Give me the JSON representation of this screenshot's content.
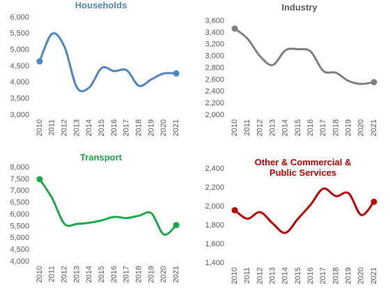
{
  "chart_data": [
    {
      "type": "line",
      "title": "Households",
      "title_color": "#4a86c8",
      "color": "#4a86c8",
      "categories": [
        "2010",
        "2011",
        "2012",
        "2013",
        "2014",
        "2015",
        "2016",
        "2017",
        "2018",
        "2019",
        "2020",
        "2021"
      ],
      "values": [
        4650,
        5500,
        5100,
        3850,
        3850,
        4450,
        4350,
        4380,
        3900,
        4100,
        4280,
        4280
      ],
      "ylim": [
        3000,
        6000
      ],
      "yticks": [
        {
          "value": 3000,
          "label": "3,000"
        },
        {
          "value": 3500,
          "label": "3,500"
        },
        {
          "value": 4000,
          "label": "4,000"
        },
        {
          "value": 4500,
          "label": "4,500"
        },
        {
          "value": 5000,
          "label": "5,000"
        },
        {
          "value": 5500,
          "label": "5,500"
        },
        {
          "value": 6000,
          "label": "6,000"
        }
      ]
    },
    {
      "type": "line",
      "title": "Industry",
      "title_color": "#595959",
      "color": "#7f7f7f",
      "categories": [
        "2010",
        "2011",
        "2012",
        "2013",
        "2014",
        "2015",
        "2016",
        "2017",
        "2018",
        "2019",
        "2020",
        "2021"
      ],
      "values": [
        3470,
        3300,
        3000,
        2850,
        3100,
        3120,
        3080,
        2750,
        2720,
        2580,
        2530,
        2560
      ],
      "ylim": [
        2000,
        3600
      ],
      "yticks": [
        {
          "value": 2000,
          "label": "2,000"
        },
        {
          "value": 2200,
          "label": "2,200"
        },
        {
          "value": 2400,
          "label": "2,400"
        },
        {
          "value": 2600,
          "label": "2,600"
        },
        {
          "value": 2800,
          "label": "2,800"
        },
        {
          "value": 3000,
          "label": "3,000"
        },
        {
          "value": 3200,
          "label": "3,200"
        },
        {
          "value": 3400,
          "label": "3,400"
        },
        {
          "value": 3600,
          "label": "3,600"
        }
      ]
    },
    {
      "type": "line",
      "title": "Transport",
      "title_color": "#1aaa4a",
      "color": "#1aaa4a",
      "categories": [
        "2010",
        "2011",
        "2012",
        "2013",
        "2014",
        "2015",
        "2016",
        "2017",
        "2018",
        "2019",
        "2020",
        "2021"
      ],
      "values": [
        7500,
        6700,
        5600,
        5600,
        5650,
        5750,
        5900,
        5850,
        5950,
        6050,
        5150,
        5550
      ],
      "ylim": [
        4000,
        8000
      ],
      "yticks": [
        {
          "value": 4000,
          "label": "4,000"
        },
        {
          "value": 4500,
          "label": "4,500"
        },
        {
          "value": 5000,
          "label": "5,000"
        },
        {
          "value": 5500,
          "label": "5,500"
        },
        {
          "value": 6000,
          "label": "6,000"
        },
        {
          "value": 6500,
          "label": "6,500"
        },
        {
          "value": 7000,
          "label": "7,000"
        },
        {
          "value": 7500,
          "label": "7,500"
        },
        {
          "value": 8000,
          "label": "8,000"
        }
      ]
    },
    {
      "type": "line",
      "title": "Other & Commercial & Public Services",
      "title_color": "#c00000",
      "color": "#c00000",
      "categories": [
        "2010",
        "2011",
        "2012",
        "2013",
        "2014",
        "2015",
        "2016",
        "2017",
        "2018",
        "2019",
        "2020",
        "2021"
      ],
      "values": [
        1960,
        1870,
        1940,
        1820,
        1720,
        1870,
        2020,
        2190,
        2110,
        2140,
        1910,
        2050
      ],
      "ylim": [
        1400,
        2400
      ],
      "yticks": [
        {
          "value": 1400,
          "label": "1,400"
        },
        {
          "value": 1600,
          "label": "1,600"
        },
        {
          "value": 1800,
          "label": "1,800"
        },
        {
          "value": 2000,
          "label": "2,000"
        },
        {
          "value": 2200,
          "label": "2,200"
        },
        {
          "value": 2400,
          "label": "2,400"
        }
      ]
    }
  ]
}
